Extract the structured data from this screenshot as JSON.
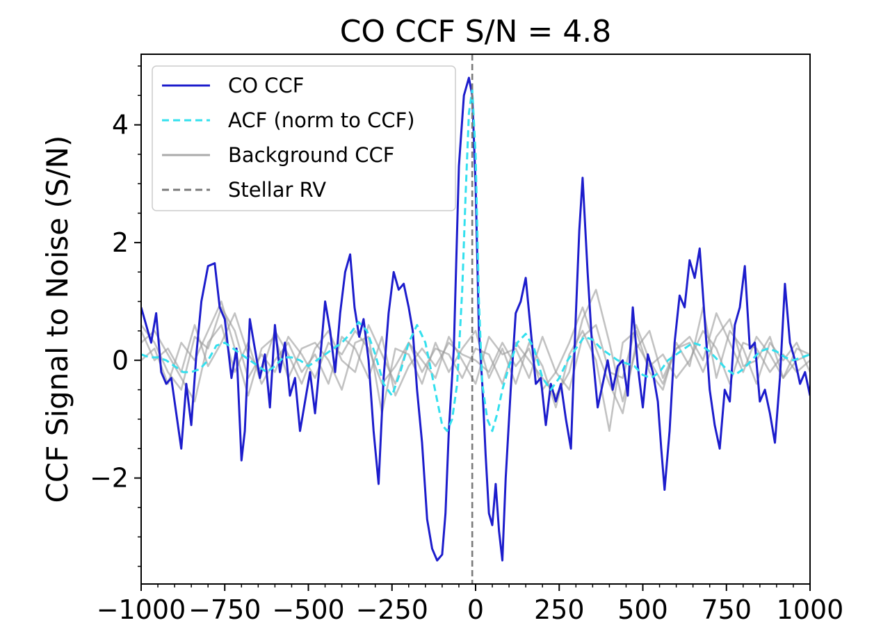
{
  "chart_data": {
    "type": "line",
    "title": "CO CCF S/N = 4.8",
    "xlabel": "",
    "ylabel": "CCF Signal to Noise (S/N)",
    "xlim": [
      -1000,
      1000
    ],
    "ylim": [
      -3.8,
      5.2
    ],
    "x_ticks": [
      -1000,
      -750,
      -500,
      -250,
      0,
      250,
      500,
      750,
      1000
    ],
    "x_tick_labels": [
      "−1000",
      "−750",
      "−500",
      "−250",
      "0",
      "250",
      "500",
      "750",
      "1000"
    ],
    "y_ticks": [
      -2,
      0,
      2,
      4
    ],
    "y_tick_labels": [
      "−2",
      "0",
      "2",
      "4"
    ],
    "grid": false,
    "legend_position": "top-left",
    "colors": {
      "co_ccf": "#1c1ccc",
      "acf": "#33e0ee",
      "background": "#9a9a9a",
      "stellar_rv": "#7a7a7a"
    },
    "legend": [
      {
        "label": "CO CCF",
        "style": "solid",
        "color": "#1c1ccc"
      },
      {
        "label": "ACF (norm to CCF)",
        "style": "dashed",
        "color": "#33e0ee"
      },
      {
        "label": "Background CCF",
        "style": "solid",
        "color": "#aaaaaa"
      },
      {
        "label": "Stellar RV",
        "style": "dashed",
        "color": "#7a7a7a"
      }
    ],
    "stellar_rv": -10,
    "series": [
      {
        "name": "CO CCF",
        "x": [
          -1000,
          -985,
          -970,
          -955,
          -940,
          -925,
          -910,
          -895,
          -880,
          -865,
          -850,
          -835,
          -820,
          -800,
          -780,
          -765,
          -750,
          -730,
          -715,
          -700,
          -690,
          -675,
          -660,
          -645,
          -630,
          -615,
          -600,
          -585,
          -570,
          -555,
          -540,
          -525,
          -510,
          -495,
          -480,
          -465,
          -450,
          -435,
          -420,
          -405,
          -390,
          -375,
          -362,
          -348,
          -335,
          -320,
          -305,
          -290,
          -275,
          -260,
          -245,
          -230,
          -215,
          -200,
          -188,
          -175,
          -160,
          -145,
          -130,
          -115,
          -100,
          -90,
          -80,
          -65,
          -50,
          -35,
          -20,
          -10,
          0,
          10,
          20,
          30,
          40,
          50,
          60,
          70,
          80,
          90,
          105,
          120,
          135,
          150,
          165,
          180,
          195,
          210,
          225,
          240,
          255,
          270,
          285,
          300,
          310,
          320,
          335,
          350,
          365,
          380,
          395,
          410,
          425,
          440,
          455,
          470,
          485,
          500,
          515,
          530,
          545,
          555,
          565,
          580,
          595,
          610,
          625,
          640,
          655,
          670,
          685,
          700,
          715,
          730,
          745,
          760,
          775,
          790,
          805,
          820,
          835,
          850,
          865,
          880,
          895,
          910,
          925,
          940,
          955,
          970,
          985,
          1000
        ],
        "values": [
          0.9,
          0.6,
          0.3,
          0.8,
          -0.2,
          -0.4,
          -0.3,
          -0.9,
          -1.5,
          -0.4,
          -1.1,
          0.1,
          1.0,
          1.6,
          1.65,
          0.9,
          0.7,
          -0.3,
          0.2,
          -1.7,
          -1.2,
          0.7,
          0.2,
          -0.3,
          0.1,
          -0.8,
          0.6,
          -0.2,
          0.3,
          -0.6,
          -0.3,
          -1.2,
          -0.7,
          -0.2,
          -0.9,
          0.0,
          1.0,
          0.5,
          -0.2,
          0.8,
          1.5,
          1.8,
          0.9,
          0.4,
          0.7,
          0.0,
          -1.2,
          -2.1,
          -0.3,
          0.8,
          1.5,
          1.2,
          1.3,
          0.9,
          0.5,
          -0.5,
          -1.4,
          -2.7,
          -3.2,
          -3.4,
          -3.3,
          -2.6,
          -1.2,
          0.2,
          3.3,
          4.5,
          4.8,
          4.5,
          3.0,
          0.5,
          -0.4,
          -1.6,
          -2.6,
          -2.8,
          -2.1,
          -2.9,
          -3.4,
          -2.0,
          -0.5,
          0.8,
          1.0,
          1.4,
          0.5,
          -0.4,
          -0.3,
          -1.1,
          -0.4,
          -0.7,
          -0.4,
          -1.0,
          -1.5,
          0.8,
          2.2,
          3.1,
          1.5,
          0.1,
          -0.8,
          -0.4,
          0.0,
          -0.5,
          -0.1,
          0.0,
          -0.6,
          0.9,
          -0.1,
          -0.8,
          0.1,
          -0.2,
          -0.7,
          -1.5,
          -2.2,
          -1.2,
          0.3,
          1.1,
          0.9,
          1.7,
          1.4,
          1.9,
          0.7,
          -0.5,
          -1.1,
          -1.5,
          -0.5,
          -0.7,
          0.6,
          0.9,
          1.6,
          0.2,
          0.3,
          -0.7,
          -0.5,
          -0.9,
          -1.4,
          -0.3,
          1.3,
          0.3,
          0.0,
          -0.4,
          -0.2,
          -0.6
        ]
      },
      {
        "name": "ACF (norm to CCF)",
        "x": [
          -1000,
          -975,
          -950,
          -925,
          -900,
          -875,
          -850,
          -825,
          -800,
          -775,
          -750,
          -725,
          -700,
          -675,
          -650,
          -625,
          -600,
          -575,
          -550,
          -525,
          -500,
          -475,
          -450,
          -425,
          -400,
          -375,
          -350,
          -325,
          -300,
          -275,
          -250,
          -225,
          -200,
          -175,
          -150,
          -125,
          -100,
          -85,
          -70,
          -55,
          -40,
          -30,
          -20,
          -10,
          0,
          10,
          20,
          35,
          50,
          65,
          80,
          100,
          125,
          150,
          175,
          200,
          225,
          250,
          275,
          300,
          325,
          350,
          375,
          400,
          425,
          450,
          475,
          500,
          525,
          550,
          575,
          600,
          625,
          650,
          675,
          700,
          725,
          750,
          775,
          800,
          825,
          850,
          875,
          900,
          925,
          950,
          975,
          1000
        ],
        "values": [
          0.1,
          0.05,
          0.05,
          0.0,
          -0.1,
          -0.2,
          -0.2,
          -0.15,
          0.0,
          0.25,
          0.3,
          0.2,
          0.1,
          0.0,
          -0.1,
          -0.2,
          -0.1,
          0.05,
          0.05,
          0.0,
          -0.1,
          0.0,
          0.1,
          0.2,
          0.3,
          0.45,
          0.65,
          0.5,
          0.1,
          -0.4,
          -0.6,
          -0.2,
          0.3,
          0.6,
          0.3,
          -0.4,
          -1.1,
          -1.2,
          -1.0,
          -0.4,
          1.2,
          2.8,
          4.2,
          4.6,
          3.5,
          1.0,
          -0.4,
          -1.0,
          -1.2,
          -0.9,
          -0.5,
          -0.1,
          0.3,
          0.45,
          0.2,
          -0.3,
          -0.5,
          -0.3,
          0.0,
          0.2,
          0.4,
          0.35,
          0.2,
          0.1,
          0.0,
          -0.05,
          -0.1,
          -0.25,
          -0.3,
          -0.2,
          0.0,
          0.1,
          0.2,
          0.3,
          0.25,
          0.15,
          0.0,
          -0.15,
          -0.25,
          -0.15,
          0.0,
          0.15,
          0.2,
          0.15,
          0.05,
          0.0,
          0.05,
          0.1
        ]
      },
      {
        "name": "Background CCF 1",
        "x": [
          -1000,
          -960,
          -920,
          -880,
          -840,
          -800,
          -760,
          -720,
          -680,
          -640,
          -600,
          -560,
          -520,
          -480,
          -440,
          -400,
          -360,
          -320,
          -280,
          -240,
          -200,
          -160,
          -120,
          -80,
          -40,
          0,
          40,
          80,
          120,
          160,
          200,
          240,
          280,
          320,
          360,
          400,
          440,
          480,
          520,
          560,
          600,
          640,
          680,
          720,
          760,
          800,
          840,
          880,
          920,
          960,
          1000
        ],
        "values": [
          0.6,
          0.3,
          -0.2,
          -0.5,
          0.4,
          0.2,
          0.9,
          0.5,
          -0.3,
          0.1,
          -0.2,
          0.4,
          0.1,
          -0.3,
          0.3,
          0.1,
          0.5,
          0.2,
          -0.4,
          -0.1,
          0.3,
          -0.2,
          0.2,
          0.1,
          -0.3,
          0.2,
          0.1,
          -0.4,
          0.3,
          0.0,
          -0.3,
          -0.6,
          -0.2,
          0.7,
          1.2,
          0.3,
          -0.7,
          0.2,
          0.5,
          -0.3,
          0.2,
          0.4,
          0.0,
          0.8,
          0.3,
          -0.2,
          0.4,
          0.1,
          -0.3,
          0.2,
          0.1
        ]
      },
      {
        "name": "Background CCF 2",
        "x": [
          -1000,
          -960,
          -920,
          -880,
          -840,
          -800,
          -760,
          -720,
          -680,
          -640,
          -600,
          -560,
          -520,
          -480,
          -440,
          -400,
          -360,
          -320,
          -280,
          -240,
          -200,
          -160,
          -120,
          -80,
          -40,
          0,
          40,
          80,
          120,
          160,
          200,
          240,
          280,
          320,
          360,
          400,
          440,
          480,
          520,
          560,
          600,
          640,
          680,
          720,
          760,
          800,
          840,
          880,
          920,
          960,
          1000
        ],
        "values": [
          0.3,
          0.5,
          0.1,
          -0.3,
          -0.7,
          0.3,
          0.6,
          -0.2,
          0.3,
          -0.4,
          0.0,
          0.3,
          -0.2,
          0.1,
          -0.4,
          0.4,
          0.2,
          -0.3,
          0.4,
          -0.6,
          -0.1,
          0.2,
          -0.1,
          0.3,
          0.1,
          0.0,
          -0.2,
          0.3,
          -0.1,
          0.2,
          -0.5,
          -0.2,
          0.3,
          0.9,
          0.2,
          -0.4,
          -0.9,
          0.3,
          -0.1,
          0.1,
          -0.3,
          0.0,
          0.5,
          0.2,
          -0.4,
          0.3,
          0.2,
          -0.2,
          0.1,
          -0.2,
          0.0
        ]
      },
      {
        "name": "Background CCF 3",
        "x": [
          -1000,
          -960,
          -920,
          -880,
          -840,
          -800,
          -760,
          -720,
          -680,
          -640,
          -600,
          -560,
          -520,
          -480,
          -440,
          -400,
          -360,
          -320,
          -280,
          -240,
          -200,
          -160,
          -120,
          -80,
          -40,
          0,
          40,
          80,
          120,
          160,
          200,
          240,
          280,
          320,
          360,
          400,
          440,
          480,
          520,
          560,
          600,
          640,
          680,
          720,
          760,
          800,
          840,
          880,
          920,
          960,
          1000
        ],
        "values": [
          0.0,
          0.2,
          -0.4,
          0.3,
          0.0,
          0.5,
          1.0,
          0.2,
          -0.6,
          0.2,
          0.4,
          -0.3,
          0.2,
          0.3,
          0.0,
          -0.5,
          0.3,
          0.4,
          -0.9,
          0.2,
          0.1,
          -0.4,
          0.3,
          -0.2,
          0.2,
          0.5,
          -0.3,
          0.2,
          -0.4,
          0.3,
          -0.1,
          -0.8,
          0.1,
          0.5,
          0.0,
          -1.2,
          0.3,
          0.5,
          -0.2,
          -0.5,
          0.3,
          -0.1,
          0.9,
          -0.3,
          0.5,
          0.2,
          -0.4,
          0.3,
          0.0,
          0.3,
          -0.2
        ]
      },
      {
        "name": "Background CCF 4",
        "x": [
          -1000,
          -960,
          -920,
          -880,
          -840,
          -800,
          -760,
          -720,
          -680,
          -640,
          -600,
          -560,
          -520,
          -480,
          -440,
          -400,
          -360,
          -320,
          -280,
          -240,
          -200,
          -160,
          -120,
          -80,
          -40,
          0,
          40,
          80,
          120,
          160,
          200,
          240,
          280,
          320,
          360,
          400,
          440,
          480,
          520,
          560,
          600,
          640,
          680,
          720,
          760,
          800,
          840,
          880,
          920,
          960,
          1000
        ],
        "values": [
          0.5,
          0.0,
          0.2,
          -0.2,
          0.6,
          -0.1,
          0.3,
          0.8,
          0.1,
          -0.2,
          0.5,
          0.1,
          -0.4,
          0.2,
          0.5,
          0.0,
          -0.2,
          0.6,
          0.1,
          -0.4,
          0.3,
          0.0,
          -0.3,
          0.4,
          0.0,
          -0.4,
          0.4,
          0.1,
          0.2,
          -0.3,
          0.4,
          -0.2,
          -0.5,
          0.4,
          0.6,
          -0.2,
          -0.3,
          0.6,
          0.0,
          -0.4,
          0.2,
          0.3,
          -0.2,
          0.4,
          0.7,
          -0.1,
          0.0,
          0.4,
          -0.3,
          0.0,
          0.1
        ]
      }
    ]
  }
}
